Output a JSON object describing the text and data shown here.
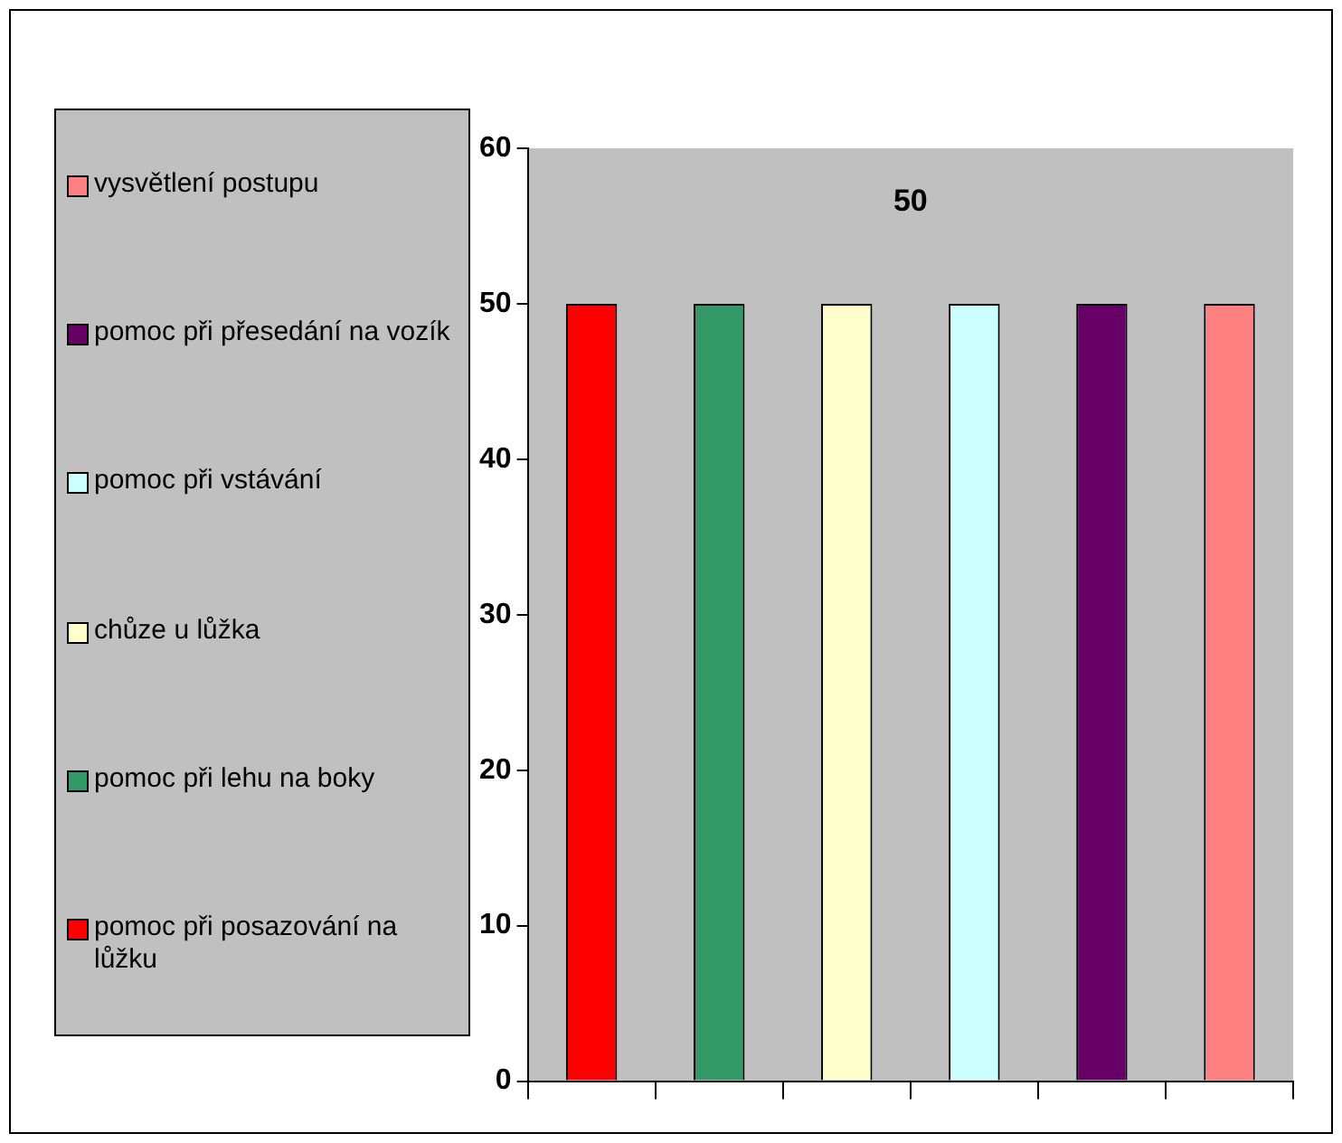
{
  "chart_data": {
    "type": "bar",
    "title": "50",
    "categories": [
      null,
      null,
      null,
      null,
      null,
      null
    ],
    "series": [
      {
        "name": "pomoc při posazování na lůžku",
        "color": "#ff0000",
        "values": [
          50,
          null,
          null,
          null,
          null,
          null
        ]
      },
      {
        "name": "pomoc při lehu na boky",
        "color": "#339966",
        "values": [
          null,
          50,
          null,
          null,
          null,
          null
        ]
      },
      {
        "name": "chůze u lůžka",
        "color": "#ffffcc",
        "values": [
          null,
          null,
          50,
          null,
          null,
          null
        ]
      },
      {
        "name": "pomoc při vstávání",
        "color": "#ccffff",
        "values": [
          null,
          null,
          null,
          50,
          null,
          null
        ]
      },
      {
        "name": "pomoc při přesedání na vozík",
        "color": "#660066",
        "values": [
          null,
          null,
          null,
          null,
          50,
          null
        ]
      },
      {
        "name": "vysvětlení postupu",
        "color": "#ff8080",
        "values": [
          null,
          null,
          null,
          null,
          null,
          50
        ]
      }
    ],
    "ylim": [
      0,
      60
    ],
    "yticks": [
      0,
      10,
      20,
      30,
      40,
      50,
      60
    ],
    "grid": false,
    "legend": "left"
  }
}
